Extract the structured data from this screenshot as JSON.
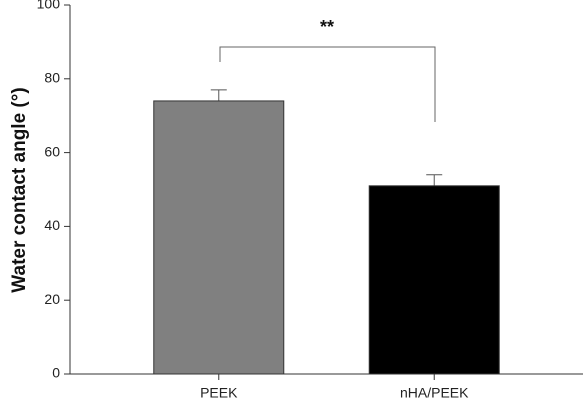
{
  "chart_data": {
    "type": "bar",
    "y_label": "Water contact angle (°)",
    "categories": [
      "PEEK",
      "nHA/PEEK"
    ],
    "values": [
      74,
      51
    ],
    "errors": [
      3,
      3
    ],
    "colors": [
      "#808080",
      "#000000"
    ],
    "annotation": "**",
    "ylim": [
      0,
      100
    ],
    "yticks": [
      0,
      20,
      40,
      60,
      80,
      100
    ],
    "grid": false
  }
}
